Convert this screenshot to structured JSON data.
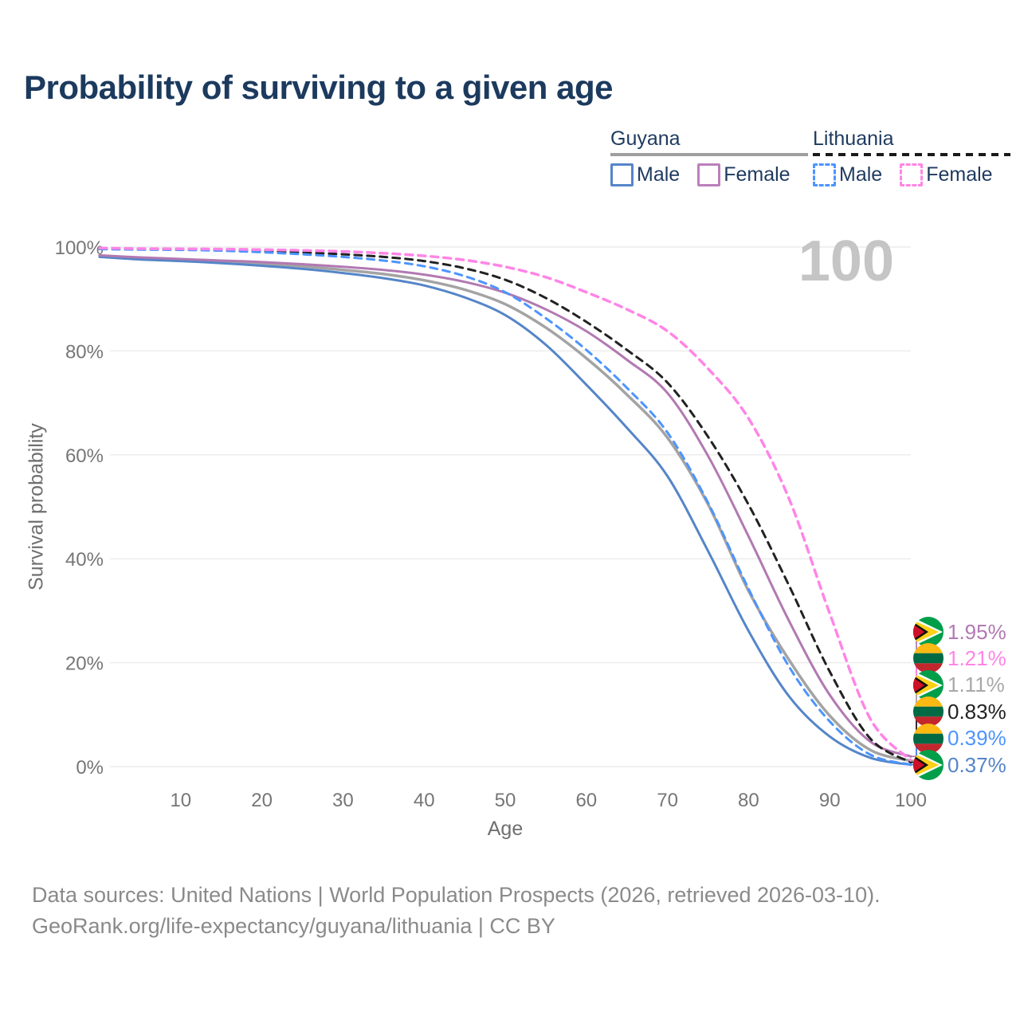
{
  "page": {
    "title": "Probability of surviving to a given age",
    "age_counter": "100",
    "footer": {
      "line1": "Data sources: United Nations | World Population Prospects (2026, retrieved 2026-03-10).",
      "line2": "GeoRank.org/life-expectancy/guyana/lithuania | CC BY"
    }
  },
  "legend": {
    "groups": [
      {
        "label": "Guyana",
        "line_style": "solid",
        "line_color": "#9e9e9e",
        "items": [
          {
            "label": "Male",
            "swatch_color": "#5585c8",
            "swatch_style": "solid"
          },
          {
            "label": "Female",
            "swatch_color": "#bb80bb",
            "swatch_style": "solid"
          }
        ]
      },
      {
        "label": "Lithuania",
        "line_style": "dashed",
        "line_color": "#1a1a1a",
        "items": [
          {
            "label": "Male",
            "swatch_color": "#4d94ff",
            "swatch_style": "dashed"
          },
          {
            "label": "Female",
            "swatch_color": "#ff85e6",
            "swatch_style": "dashed"
          }
        ]
      }
    ]
  },
  "chart_data": {
    "type": "line",
    "title": "Probability of surviving to a given age",
    "xlabel": "Age",
    "ylabel": "Survival probability",
    "xlim": [
      0,
      100
    ],
    "ylim": [
      0,
      100
    ],
    "grid": "horizontal-only",
    "legend_position": "top-right",
    "x_ticks": [
      10,
      20,
      30,
      40,
      50,
      60,
      70,
      80,
      90,
      100
    ],
    "y_ticks": [
      "0%",
      "20%",
      "40%",
      "60%",
      "80%",
      "100%"
    ],
    "x": [
      0,
      5,
      10,
      15,
      20,
      25,
      30,
      35,
      40,
      45,
      50,
      55,
      60,
      65,
      70,
      75,
      80,
      85,
      90,
      95,
      100
    ],
    "series": [
      {
        "name": "Guyana — Both sexes",
        "country": "Guyana",
        "sex": "Both",
        "style": "solid",
        "color": "#a3a3a3",
        "width": 3.5,
        "values": [
          98.3,
          97.8,
          97.5,
          97.2,
          96.8,
          96.3,
          95.6,
          94.8,
          93.6,
          91.8,
          89.0,
          84.5,
          78.6,
          71.6,
          63.3,
          50.5,
          33.8,
          20.5,
          9.8,
          3.2,
          1.11
        ]
      },
      {
        "name": "Guyana — Male",
        "country": "Guyana",
        "sex": "Male",
        "style": "solid",
        "color": "#5585c8",
        "width": 3,
        "values": [
          98.1,
          97.6,
          97.3,
          96.9,
          96.4,
          95.8,
          95.0,
          94.0,
          92.6,
          90.3,
          86.9,
          81.2,
          73.5,
          65.2,
          55.9,
          41.5,
          26.1,
          13.5,
          5.8,
          1.7,
          0.37
        ]
      },
      {
        "name": "Guyana — Female",
        "country": "Guyana",
        "sex": "Female",
        "style": "solid",
        "color": "#b279b2",
        "width": 3,
        "values": [
          98.4,
          98.0,
          97.7,
          97.4,
          97.1,
          96.7,
          96.2,
          95.6,
          94.7,
          93.3,
          91.2,
          88.0,
          83.8,
          78.3,
          71.9,
          59.8,
          44.3,
          28.0,
          13.8,
          4.8,
          1.95
        ]
      },
      {
        "name": "Lithuania — Both sexes",
        "country": "Lithuania",
        "sex": "Both",
        "style": "dashed",
        "color": "#222222",
        "width": 3,
        "values": [
          99.7,
          99.6,
          99.55,
          99.45,
          99.25,
          98.95,
          98.6,
          98.1,
          97.3,
          95.9,
          93.7,
          90.2,
          85.6,
          80.2,
          73.9,
          63.5,
          50.4,
          34.8,
          18.3,
          5.4,
          0.83
        ]
      },
      {
        "name": "Lithuania — Male",
        "country": "Lithuania",
        "sex": "Male",
        "style": "dashed",
        "color": "#4d94ff",
        "width": 3,
        "values": [
          99.6,
          99.5,
          99.45,
          99.3,
          99.0,
          98.6,
          98.1,
          97.4,
          96.3,
          94.4,
          91.3,
          86.3,
          80.2,
          72.9,
          64.3,
          50.8,
          34.2,
          19.2,
          8.7,
          2.3,
          0.39
        ]
      },
      {
        "name": "Lithuania — Female",
        "country": "Lithuania",
        "sex": "Female",
        "style": "dashed",
        "color": "#ff85e6",
        "width": 3.5,
        "values": [
          99.8,
          99.7,
          99.65,
          99.6,
          99.5,
          99.35,
          99.15,
          98.8,
          98.3,
          97.5,
          96.2,
          94.2,
          91.3,
          88.0,
          83.8,
          76.6,
          67.0,
          51.5,
          29.5,
          9.2,
          1.21
        ]
      }
    ],
    "end_labels": [
      {
        "value": "1.95%",
        "end_value": 1.95,
        "series": "Guyana — Female",
        "flag": "guyana",
        "color": "#b279b2"
      },
      {
        "value": "1.21%",
        "end_value": 1.21,
        "series": "Lithuania — Female",
        "flag": "lithuania",
        "color": "#ff85e6"
      },
      {
        "value": "1.11%",
        "end_value": 1.11,
        "series": "Guyana — Both sexes",
        "flag": "guyana",
        "color": "#a8a8a8"
      },
      {
        "value": "0.83%",
        "end_value": 0.83,
        "series": "Lithuania — Both sexes",
        "flag": "lithuania",
        "color": "#222222"
      },
      {
        "value": "0.39%",
        "end_value": 0.39,
        "series": "Lithuania — Male",
        "flag": "lithuania",
        "color": "#4d94ff"
      },
      {
        "value": "0.37%",
        "end_value": 0.37,
        "series": "Guyana — Male",
        "flag": "guyana",
        "color": "#5585c8"
      }
    ],
    "flags": {
      "guyana": {
        "green": "#009E49",
        "white": "#ffffff",
        "yellow": "#FCD116",
        "black": "#111111",
        "red": "#CE1126"
      },
      "lithuania": {
        "yellow": "#FDB913",
        "green": "#006A44",
        "red": "#C1272D"
      }
    },
    "colors": {
      "grid": "#ececec",
      "axis_text": "#767676",
      "title_text": "#1c3a5e",
      "counter_text": "#c5c5c5",
      "footer_text": "#8a8a8a"
    }
  }
}
